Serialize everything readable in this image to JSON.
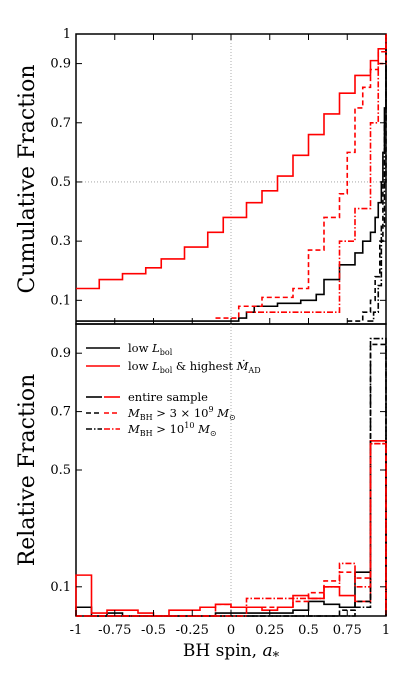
{
  "chart_data": [
    {
      "type": "line",
      "panel": "top",
      "ylabel": "Cumulative Fraction",
      "xlim": [
        -1,
        1
      ],
      "ylim": [
        0.02,
        1.0
      ],
      "yticks": [
        "0.1",
        "0.3",
        "0.5",
        "0.7",
        "0.9",
        "1"
      ],
      "ytick_values": [
        0.1,
        0.3,
        0.5,
        0.7,
        0.9,
        1.0
      ],
      "grid": "dotted at x=0 and y=0.5",
      "series": [
        {
          "name": "low L_bol",
          "color": "#000000",
          "style": "solid",
          "x": [
            -1.0,
            0.05,
            0.1,
            0.15,
            0.3,
            0.45,
            0.55,
            0.6,
            0.7,
            0.8,
            0.85,
            0.9,
            0.93,
            0.95,
            0.97,
            0.98,
            0.99,
            1.0
          ],
          "y": [
            0.03,
            0.04,
            0.06,
            0.08,
            0.09,
            0.1,
            0.12,
            0.17,
            0.22,
            0.26,
            0.3,
            0.33,
            0.38,
            0.43,
            0.5,
            0.6,
            0.75,
            1.0
          ]
        },
        {
          "name": "low L_bol & highest Mdot_AD",
          "color": "#ff0000",
          "style": "solid",
          "x": [
            -1.0,
            -0.85,
            -0.7,
            -0.55,
            -0.45,
            -0.3,
            -0.15,
            -0.05,
            0.1,
            0.2,
            0.3,
            0.4,
            0.5,
            0.6,
            0.7,
            0.8,
            0.9,
            0.95,
            1.0
          ],
          "y": [
            0.14,
            0.17,
            0.19,
            0.21,
            0.24,
            0.28,
            0.33,
            0.38,
            0.43,
            0.47,
            0.52,
            0.59,
            0.66,
            0.73,
            0.8,
            0.86,
            0.91,
            0.95,
            1.0
          ]
        },
        {
          "name": "M_BH > 3 x 10^9 M_sun (low L_bol)",
          "color": "#000000",
          "style": "dashed",
          "x": [
            0.75,
            0.85,
            0.9,
            0.93,
            0.96,
            0.98,
            1.0
          ],
          "y": [
            0.03,
            0.06,
            0.1,
            0.18,
            0.3,
            0.5,
            1.0
          ]
        },
        {
          "name": "M_BH > 10^10 M_sun (low L_bol)",
          "color": "#000000",
          "style": "dashdot",
          "x": [
            0.88,
            0.92,
            0.95,
            0.97,
            0.99,
            1.0
          ],
          "y": [
            0.03,
            0.06,
            0.15,
            0.35,
            0.7,
            1.0
          ]
        },
        {
          "name": "M_BH > 3 x 10^9 M_sun (highest Mdot_AD)",
          "color": "#ff0000",
          "style": "dashed",
          "x": [
            -0.1,
            0.05,
            0.2,
            0.4,
            0.5,
            0.6,
            0.7,
            0.75,
            0.8,
            0.85,
            0.9,
            0.95,
            1.0
          ],
          "y": [
            0.04,
            0.08,
            0.11,
            0.14,
            0.27,
            0.38,
            0.46,
            0.6,
            0.75,
            0.82,
            0.88,
            0.94,
            1.0
          ]
        },
        {
          "name": "M_BH > 10^10 M_sun (highest Mdot_AD)",
          "color": "#ff0000",
          "style": "dashdot",
          "x": [
            0.1,
            0.55,
            0.7,
            0.8,
            0.9,
            0.95,
            1.0
          ],
          "y": [
            0.06,
            0.06,
            0.3,
            0.41,
            0.7,
            0.9,
            1.0
          ]
        }
      ]
    },
    {
      "type": "step",
      "panel": "bottom",
      "xlabel": "BH spin, a_*",
      "ylabel": "Relative Fraction",
      "xlim": [
        -1,
        1
      ],
      "ylim": [
        0,
        1.0
      ],
      "xticks": [
        "-1",
        "-0.75",
        "-0.5",
        "-0.25",
        "0",
        "0.25",
        "0.5",
        "0.75",
        "1"
      ],
      "xtick_values": [
        -1,
        -0.75,
        -0.5,
        -0.25,
        0,
        0.25,
        0.5,
        0.75,
        1
      ],
      "yticks": [
        "0.1",
        "0.5",
        "0.7",
        "0.9"
      ],
      "ytick_values": [
        0.1,
        0.5,
        0.7,
        0.9
      ],
      "grid": "dotted at x=0",
      "legend": {
        "placement": "top-left",
        "entries": [
          {
            "label": "low L_bol",
            "color": "#000000",
            "style": "solid"
          },
          {
            "label": "low L_bol & highest Mdot_AD",
            "color": "#ff0000",
            "style": "solid"
          },
          {
            "label": "entire sample",
            "color": "#000000",
            "style": "solid",
            "second_color": "#ff0000"
          },
          {
            "label": "M_BH > 3 x 10^9 M_sun",
            "color": "#000000",
            "style": "dashed",
            "second_color": "#ff0000"
          },
          {
            "label": "M_BH > 10^10 M_sun",
            "color": "#000000",
            "style": "dashdot",
            "second_color": "#ff0000"
          }
        ]
      },
      "bin_edges": [
        -1.0,
        -0.9,
        -0.8,
        -0.7,
        -0.6,
        -0.5,
        -0.4,
        -0.3,
        -0.2,
        -0.1,
        0.0,
        0.1,
        0.2,
        0.3,
        0.4,
        0.5,
        0.6,
        0.7,
        0.8,
        0.9,
        1.0
      ],
      "series": [
        {
          "name": "entire sample, low L_bol",
          "color": "#000000",
          "style": "solid",
          "values": [
            0.03,
            0.0,
            0.01,
            0.0,
            0.0,
            0.0,
            0.0,
            0.0,
            0.0,
            0.01,
            0.01,
            0.01,
            0.01,
            0.01,
            0.02,
            0.05,
            0.04,
            0.03,
            0.15,
            0.6
          ]
        },
        {
          "name": "entire sample, highest Mdot_AD",
          "color": "#ff0000",
          "style": "solid",
          "values": [
            0.14,
            0.01,
            0.02,
            0.02,
            0.01,
            0.0,
            0.02,
            0.02,
            0.03,
            0.04,
            0.03,
            0.03,
            0.02,
            0.03,
            0.07,
            0.06,
            0.1,
            0.07,
            0.05,
            0.6
          ]
        },
        {
          "name": "M_BH > 3 x 10^9, low L_bol",
          "color": "#000000",
          "style": "dashed",
          "values": [
            0,
            0,
            0,
            0,
            0,
            0,
            0,
            0,
            0,
            0,
            0,
            0,
            0,
            0,
            0,
            0,
            0,
            0.02,
            0.05,
            0.93
          ]
        },
        {
          "name": "M_BH > 10^10, low L_bol",
          "color": "#000000",
          "style": "dashdot",
          "values": [
            0,
            0,
            0,
            0,
            0,
            0,
            0,
            0,
            0,
            0,
            0,
            0,
            0,
            0,
            0,
            0,
            0,
            0,
            0.03,
            0.95
          ]
        },
        {
          "name": "M_BH > 3 x 10^9, highest Mdot_AD",
          "color": "#ff0000",
          "style": "dashed",
          "values": [
            0,
            0,
            0,
            0,
            0,
            0,
            0,
            0,
            0,
            0.04,
            0.03,
            0.03,
            0.03,
            0.03,
            0.05,
            0.08,
            0.12,
            0.15,
            0.13,
            0.59
          ]
        },
        {
          "name": "M_BH > 10^10, highest Mdot_AD",
          "color": "#ff0000",
          "style": "dashdot",
          "values": [
            0,
            0,
            0,
            0,
            0,
            0,
            0,
            0,
            0,
            0,
            0,
            0.06,
            0.06,
            0.06,
            0.06,
            0.06,
            0.1,
            0.18,
            0.1,
            0.59
          ]
        }
      ]
    }
  ]
}
